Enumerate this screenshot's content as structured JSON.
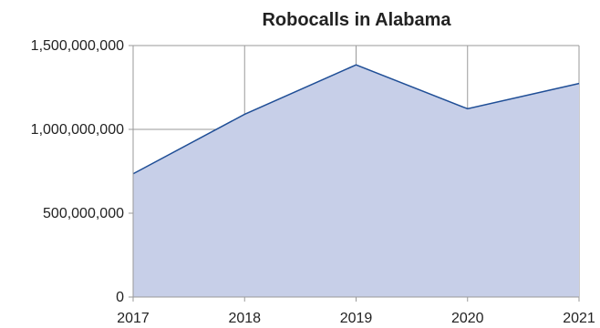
{
  "chart_data": {
    "type": "area",
    "title": "Robocalls in Alabama",
    "xlabel": "",
    "ylabel": "",
    "x": [
      "2017",
      "2018",
      "2019",
      "2020",
      "2021"
    ],
    "series": [
      {
        "values": [
          735000000,
          1090000000,
          1385000000,
          1123000000,
          1274000000
        ]
      }
    ],
    "ylim": [
      0,
      1500000000
    ],
    "yticks": [
      0,
      500000000,
      1000000000,
      1500000000
    ],
    "ytick_labels": [
      "0",
      "500,000,000",
      "1,000,000,000",
      "1,500,000,000"
    ],
    "grid": true,
    "legend": "none",
    "colors": {
      "fill": "#c7cfe8",
      "line": "#1f4e96",
      "grid": "#9a9a9a"
    }
  }
}
